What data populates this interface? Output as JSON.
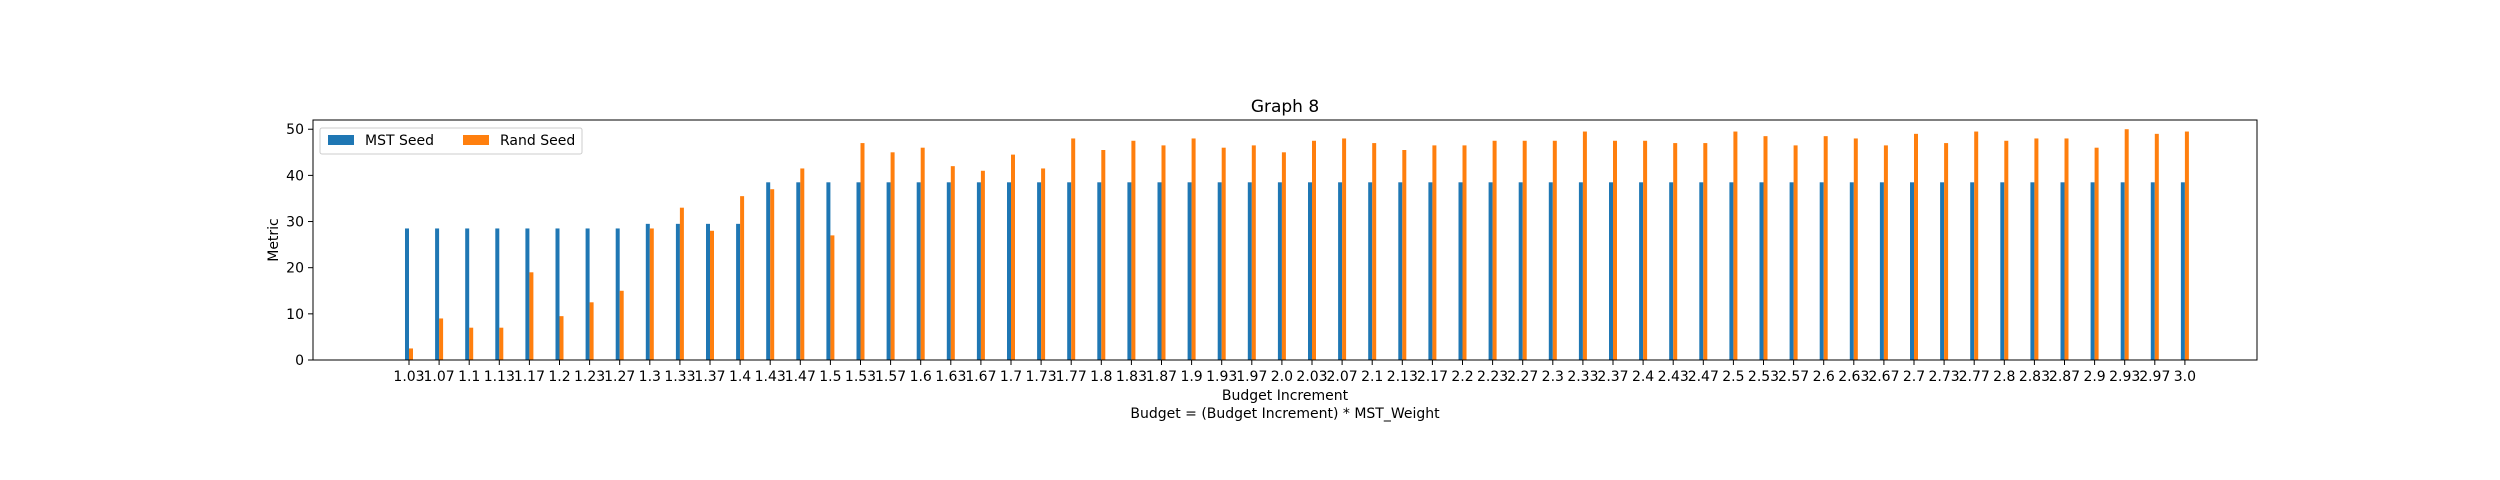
{
  "chart_data": {
    "type": "bar",
    "title": "Graph 8",
    "xlabel": "Budget Increment",
    "xlabel2": "Budget = (Budget Increment) * MST_Weight",
    "ylabel": "Metric",
    "ylim": [
      0,
      52
    ],
    "yticks": [
      0,
      10,
      20,
      30,
      40,
      50
    ],
    "grid": false,
    "legend_position": "top-left",
    "legend_columns": 2,
    "categories": [
      "1.03",
      "1.07",
      "1.1",
      "1.13",
      "1.17",
      "1.2",
      "1.23",
      "1.27",
      "1.3",
      "1.33",
      "1.37",
      "1.4",
      "1.43",
      "1.47",
      "1.5",
      "1.53",
      "1.57",
      "1.6",
      "1.63",
      "1.67",
      "1.7",
      "1.73",
      "1.77",
      "1.8",
      "1.83",
      "1.87",
      "1.9",
      "1.93",
      "1.97",
      "2.0",
      "2.03",
      "2.07",
      "2.1",
      "2.13",
      "2.17",
      "2.2",
      "2.23",
      "2.27",
      "2.3",
      "2.33",
      "2.37",
      "2.4",
      "2.43",
      "2.47",
      "2.5",
      "2.53",
      "2.57",
      "2.6",
      "2.63",
      "2.67",
      "2.7",
      "2.73",
      "2.77",
      "2.8",
      "2.83",
      "2.87",
      "2.9",
      "2.93",
      "2.97",
      "3.0"
    ],
    "series": [
      {
        "name": "MST Seed",
        "color": "#1f77b4",
        "values": [
          28.5,
          28.5,
          28.5,
          28.5,
          28.5,
          28.5,
          28.5,
          28.5,
          29.5,
          29.5,
          29.5,
          29.5,
          38.5,
          38.5,
          38.5,
          38.5,
          38.5,
          38.5,
          38.5,
          38.5,
          38.5,
          38.5,
          38.5,
          38.5,
          38.5,
          38.5,
          38.5,
          38.5,
          38.5,
          38.5,
          38.5,
          38.5,
          38.5,
          38.5,
          38.5,
          38.5,
          38.5,
          38.5,
          38.5,
          38.5,
          38.5,
          38.5,
          38.5,
          38.5,
          38.5,
          38.5,
          38.5,
          38.5,
          38.5,
          38.5,
          38.5,
          38.5,
          38.5,
          38.5,
          38.5,
          38.5,
          38.5,
          38.5,
          38.5,
          38.5
        ]
      },
      {
        "name": "Rand Seed",
        "color": "#ff7f0e",
        "values": [
          2.5,
          9,
          7,
          7,
          19,
          9.5,
          12.5,
          15,
          28.5,
          33,
          28,
          35.5,
          37,
          41.5,
          27,
          47,
          45,
          46,
          42,
          41,
          44.5,
          41.5,
          48,
          45.5,
          47.5,
          46.5,
          48,
          46,
          46.5,
          45,
          47.5,
          48,
          47,
          45.5,
          46.5,
          46.5,
          47.5,
          47.5,
          47.5,
          49.5,
          47.5,
          47.5,
          47,
          47,
          49.5,
          48.5,
          46.5,
          48.5,
          48,
          46.5,
          49,
          47,
          49.5,
          47.5,
          48,
          48,
          46,
          50,
          49,
          49.5
        ]
      }
    ]
  }
}
